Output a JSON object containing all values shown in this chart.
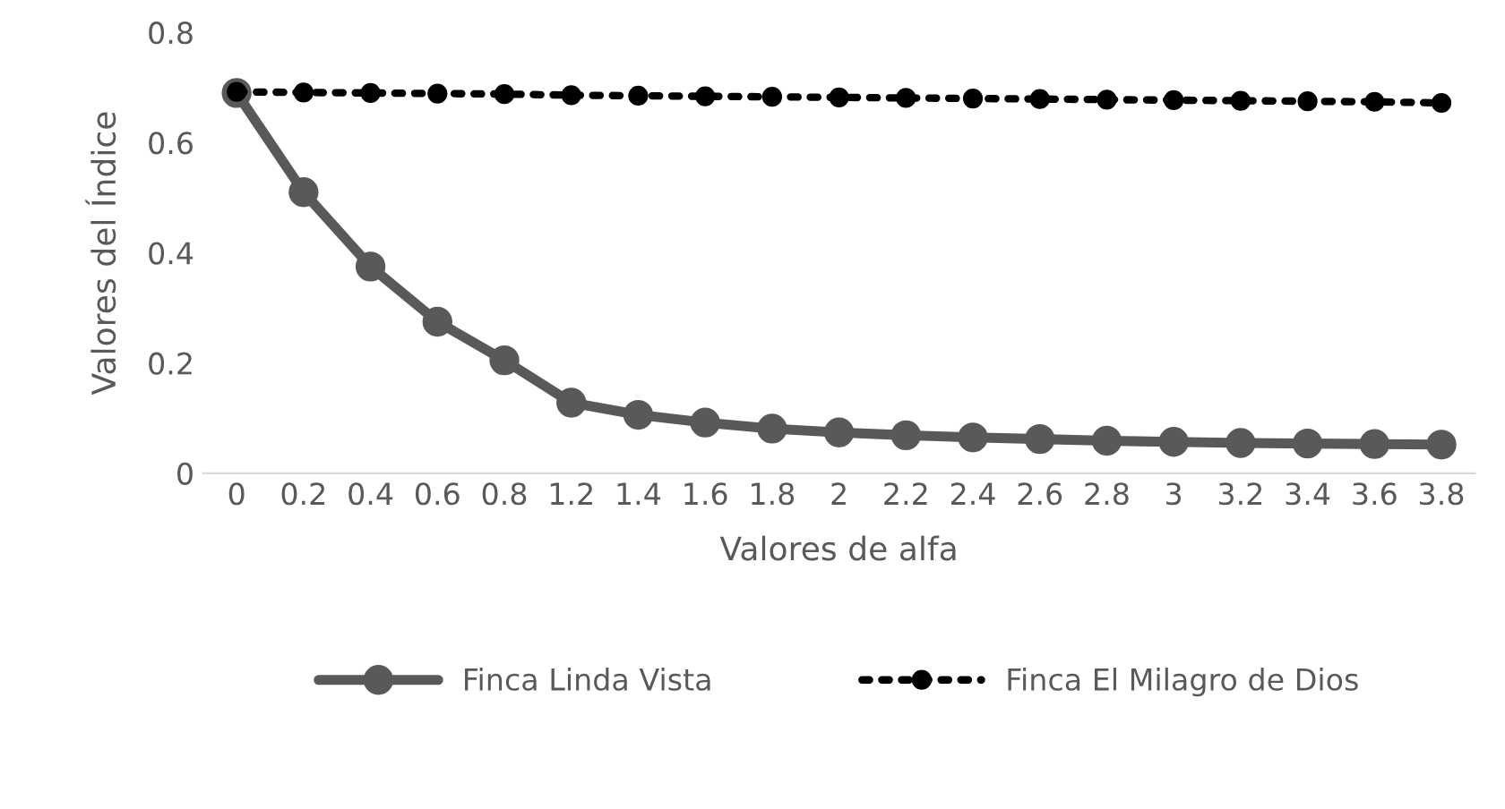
{
  "chart_data": {
    "type": "line",
    "xlabel": "Valores de alfa",
    "ylabel": "Valores del Índice",
    "categories": [
      "0",
      "0.2",
      "0.4",
      "0.6",
      "0.8",
      "1.2",
      "1.4",
      "1.6",
      "1.8",
      "2",
      "2.2",
      "2.4",
      "2.6",
      "2.8",
      "3",
      "3.2",
      "3.4",
      "3.6",
      "3.8"
    ],
    "series": [
      {
        "name": "Finca Linda Vista",
        "color": "#595959",
        "marker": "circle",
        "line_style": "solid",
        "values": [
          0.69,
          0.51,
          0.375,
          0.275,
          0.205,
          0.128,
          0.106,
          0.092,
          0.081,
          0.074,
          0.069,
          0.065,
          0.062,
          0.059,
          0.057,
          0.055,
          0.054,
          0.053,
          0.052
        ]
      },
      {
        "name": "Finca El Milagro de Dios",
        "color": "#000000",
        "marker": "circle",
        "line_style": "dotted",
        "values": [
          0.692,
          0.691,
          0.69,
          0.689,
          0.688,
          0.686,
          0.685,
          0.684,
          0.683,
          0.682,
          0.681,
          0.68,
          0.679,
          0.678,
          0.677,
          0.676,
          0.675,
          0.674,
          0.672
        ]
      }
    ],
    "ylim": [
      0,
      0.8
    ],
    "yticks": [
      0,
      0.2,
      0.4,
      0.6,
      0.8
    ],
    "grid": false,
    "legend": "bottom"
  }
}
